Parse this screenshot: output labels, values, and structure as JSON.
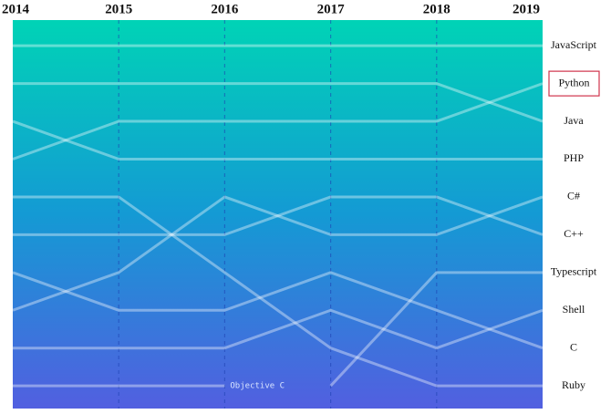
{
  "chart_data": {
    "type": "bump",
    "categories": [
      "2014",
      "2015",
      "2016",
      "2017",
      "2018",
      "2019"
    ],
    "ylim": [
      0.32,
      10.6
    ],
    "inverted": true,
    "line_color": "#ffffff",
    "highlight": 1,
    "series": [
      {
        "name": "JavaScript",
        "values": [
          1,
          1,
          1,
          1,
          1,
          1
        ]
      },
      {
        "name": "Python",
        "values": [
          4,
          3,
          3,
          3,
          3,
          2
        ]
      },
      {
        "name": "Java",
        "values": [
          2,
          2,
          2,
          2,
          2,
          3
        ]
      },
      {
        "name": "PHP",
        "values": [
          3,
          4,
          4,
          4,
          4,
          4
        ]
      },
      {
        "name": "C#",
        "values": [
          8,
          7,
          5,
          6,
          6,
          5
        ]
      },
      {
        "name": "C++",
        "values": [
          6,
          6,
          6,
          5,
          5,
          6
        ]
      },
      {
        "name": "Typescript",
        "values": [
          null,
          null,
          null,
          10,
          7,
          7
        ]
      },
      {
        "name": "Shell",
        "values": [
          9,
          9,
          9,
          8,
          9,
          8
        ]
      },
      {
        "name": "C",
        "values": [
          7,
          8,
          8,
          7,
          8,
          9
        ]
      },
      {
        "name": "Ruby",
        "values": [
          5,
          5,
          7,
          9,
          10,
          10
        ]
      },
      {
        "name": "Objective C",
        "values": [
          10,
          10,
          10,
          null,
          null,
          null
        ]
      }
    ]
  }
}
